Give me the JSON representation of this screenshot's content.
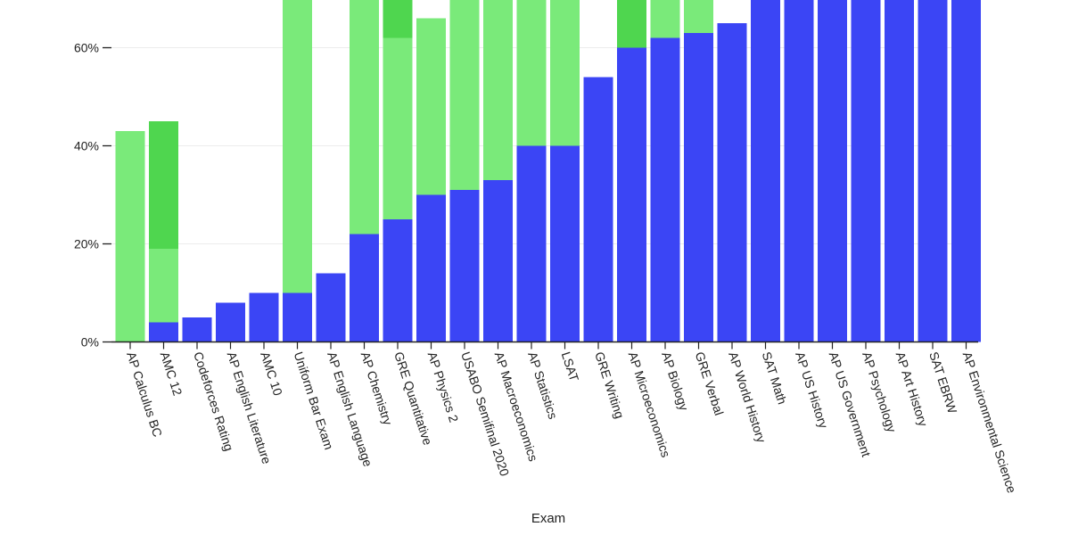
{
  "chart_data": {
    "type": "bar",
    "stacked": true,
    "title": "",
    "xlabel": "Exam",
    "ylabel": "",
    "ylim": [
      0,
      0.7
    ],
    "y_ticks": [
      0,
      0.2,
      0.4,
      0.6
    ],
    "y_tick_labels": [
      "0%",
      "20%",
      "40%",
      "60%"
    ],
    "grid": "horizontal",
    "categories": [
      "AP Calculus BC",
      "AMC 12",
      "Codeforces Rating",
      "AP English Literature",
      "AMC 10",
      "Uniform Bar Exam",
      "AP English Language",
      "AP Chemistry",
      "GRE Quantitative",
      "AP Physics 2",
      "USABO Semifinal 2020",
      "AP Macroeconomics",
      "AP Statistics",
      "LSAT",
      "GRE Writing",
      "AP Microeconomics",
      "AP Biology",
      "GRE Verbal",
      "AP World History",
      "SAT Math",
      "AP US History",
      "AP US Government",
      "AP Psychology",
      "AP Art History",
      "SAT EBRW",
      "AP Environmental Science"
    ],
    "series": [
      {
        "name": "blue",
        "color": "#3b45f5",
        "values": [
          0.0,
          0.04,
          0.05,
          0.08,
          0.1,
          0.1,
          0.14,
          0.22,
          0.25,
          0.3,
          0.31,
          0.33,
          0.4,
          0.4,
          0.54,
          0.6,
          0.62,
          0.63,
          0.65,
          0.7,
          0.7,
          0.7,
          0.7,
          0.7,
          0.7,
          0.7
        ]
      },
      {
        "name": "light green",
        "color": "#7aea7a",
        "values": [
          0.43,
          0.15,
          0.0,
          0.0,
          0.0,
          0.6,
          0.0,
          0.48,
          0.37,
          0.36,
          0.39,
          0.37,
          0.3,
          0.3,
          0.0,
          0.0,
          0.08,
          0.07,
          0.0,
          0.0,
          0.0,
          0.0,
          0.0,
          0.0,
          0.0,
          0.0
        ]
      },
      {
        "name": "dark green",
        "color": "#4fd64f",
        "values": [
          0.0,
          0.26,
          0.0,
          0.0,
          0.0,
          0.0,
          0.0,
          0.0,
          0.08,
          0.0,
          0.0,
          0.0,
          0.0,
          0.0,
          0.0,
          0.1,
          0.0,
          0.0,
          0.0,
          0.0,
          0.0,
          0.0,
          0.0,
          0.0,
          0.0,
          0.0
        ]
      }
    ],
    "axis_color": "#222222",
    "grid_color": "#ececec"
  }
}
